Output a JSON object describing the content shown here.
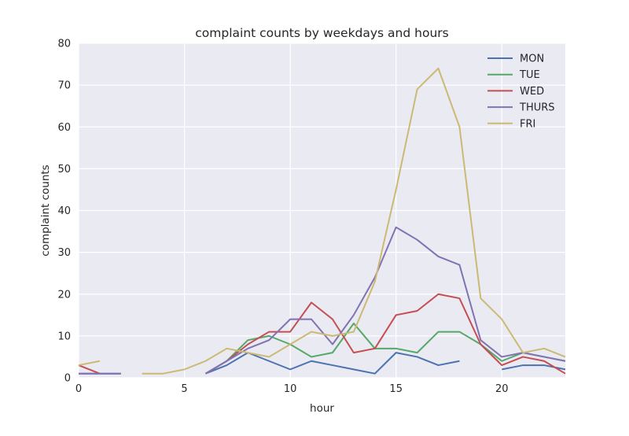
{
  "chart_data": {
    "type": "line",
    "title": "complaint counts by weekdays and hours",
    "xlabel": "hour",
    "ylabel": "complaint counts",
    "xlim": [
      0,
      23
    ],
    "ylim": [
      0,
      80
    ],
    "xticks": [
      0,
      5,
      10,
      15,
      20
    ],
    "yticks": [
      0,
      10,
      20,
      30,
      40,
      50,
      60,
      70,
      80
    ],
    "grid": true,
    "legend_position": "top-right",
    "series": [
      {
        "name": "MON",
        "color": "#4c72b0",
        "points": [
          [
            0,
            1
          ],
          [
            1,
            1
          ],
          [
            2,
            1
          ],
          [
            6,
            1
          ],
          [
            7,
            3
          ],
          [
            8,
            6
          ],
          [
            9,
            4
          ],
          [
            10,
            2
          ],
          [
            11,
            4
          ],
          [
            12,
            3
          ],
          [
            13,
            2
          ],
          [
            14,
            1
          ],
          [
            15,
            6
          ],
          [
            16,
            5
          ],
          [
            17,
            3
          ],
          [
            18,
            4
          ],
          [
            20,
            2
          ],
          [
            21,
            3
          ],
          [
            22,
            3
          ],
          [
            23,
            2
          ]
        ]
      },
      {
        "name": "TUE",
        "color": "#55a868",
        "points": [
          [
            6,
            1
          ],
          [
            7,
            4
          ],
          [
            8,
            9
          ],
          [
            9,
            10
          ],
          [
            10,
            8
          ],
          [
            11,
            5
          ],
          [
            12,
            6
          ],
          [
            13,
            13
          ],
          [
            14,
            7
          ],
          [
            15,
            7
          ],
          [
            16,
            6
          ],
          [
            17,
            11
          ],
          [
            18,
            11
          ],
          [
            19,
            8
          ],
          [
            20,
            4
          ],
          [
            21,
            6
          ],
          [
            22,
            5
          ],
          [
            23,
            4
          ]
        ]
      },
      {
        "name": "WED",
        "color": "#c44e52",
        "points": [
          [
            0,
            3
          ],
          [
            1,
            1
          ],
          [
            6,
            1
          ],
          [
            7,
            4
          ],
          [
            8,
            8
          ],
          [
            9,
            11
          ],
          [
            10,
            11
          ],
          [
            11,
            18
          ],
          [
            12,
            14
          ],
          [
            13,
            6
          ],
          [
            14,
            7
          ],
          [
            15,
            15
          ],
          [
            16,
            16
          ],
          [
            17,
            20
          ],
          [
            18,
            19
          ],
          [
            19,
            8
          ],
          [
            20,
            3
          ],
          [
            21,
            5
          ],
          [
            22,
            4
          ],
          [
            23,
            1
          ]
        ]
      },
      {
        "name": "THURS",
        "color": "#8172b2",
        "points": [
          [
            0,
            1
          ],
          [
            1,
            1
          ],
          [
            2,
            1
          ],
          [
            6,
            1
          ],
          [
            7,
            4
          ],
          [
            8,
            7
          ],
          [
            9,
            9
          ],
          [
            10,
            14
          ],
          [
            11,
            14
          ],
          [
            12,
            8
          ],
          [
            13,
            15
          ],
          [
            14,
            24
          ],
          [
            15,
            36
          ],
          [
            16,
            33
          ],
          [
            17,
            29
          ],
          [
            18,
            27
          ],
          [
            19,
            9
          ],
          [
            20,
            5
          ],
          [
            21,
            6
          ],
          [
            22,
            5
          ],
          [
            23,
            4
          ]
        ]
      },
      {
        "name": "FRI",
        "color": "#ccb974",
        "points": [
          [
            0,
            3
          ],
          [
            1,
            4
          ],
          [
            3,
            1
          ],
          [
            4,
            1
          ],
          [
            5,
            2
          ],
          [
            6,
            4
          ],
          [
            7,
            7
          ],
          [
            8,
            6
          ],
          [
            9,
            5
          ],
          [
            10,
            8
          ],
          [
            11,
            11
          ],
          [
            12,
            10
          ],
          [
            13,
            11
          ],
          [
            14,
            23
          ],
          [
            15,
            45
          ],
          [
            16,
            69
          ],
          [
            17,
            74
          ],
          [
            18,
            60
          ],
          [
            19,
            19
          ],
          [
            20,
            14
          ],
          [
            21,
            6
          ],
          [
            22,
            7
          ],
          [
            23,
            5
          ]
        ]
      }
    ]
  }
}
